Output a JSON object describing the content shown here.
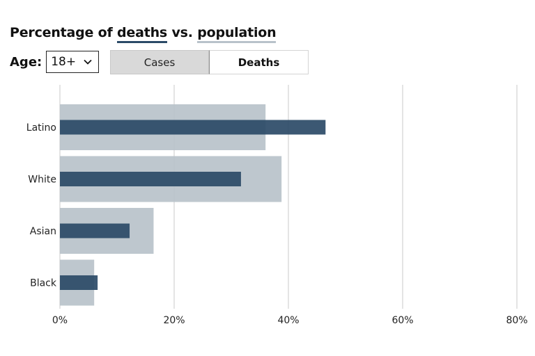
{
  "title": {
    "prefix": "Percentage of ",
    "deaths_word": "deaths",
    "middle": " vs. ",
    "population_word": "population"
  },
  "controls": {
    "age_label": "Age:",
    "age_selected": "18+",
    "toggle": [
      {
        "label": "Cases",
        "active": true
      },
      {
        "label": "Deaths",
        "active": false
      }
    ]
  },
  "colors": {
    "population": "#b8c2ca",
    "deaths": "#2b4a67",
    "grid": "#c8c8c8"
  },
  "chart_data": {
    "type": "bar",
    "orientation": "horizontal",
    "categories": [
      "Latino",
      "White",
      "Asian",
      "Black"
    ],
    "series": [
      {
        "values": [
          36,
          38.8,
          16.4,
          6
        ]
      },
      {
        "values": [
          46.5,
          31.7,
          12.2,
          6.6
        ]
      }
    ],
    "xlim": [
      0,
      80
    ],
    "xticks": [
      0,
      20,
      40,
      60,
      80
    ],
    "xtick_labels": [
      "0%",
      "20%",
      "40%",
      "60%",
      "80%"
    ],
    "grid": true
  }
}
